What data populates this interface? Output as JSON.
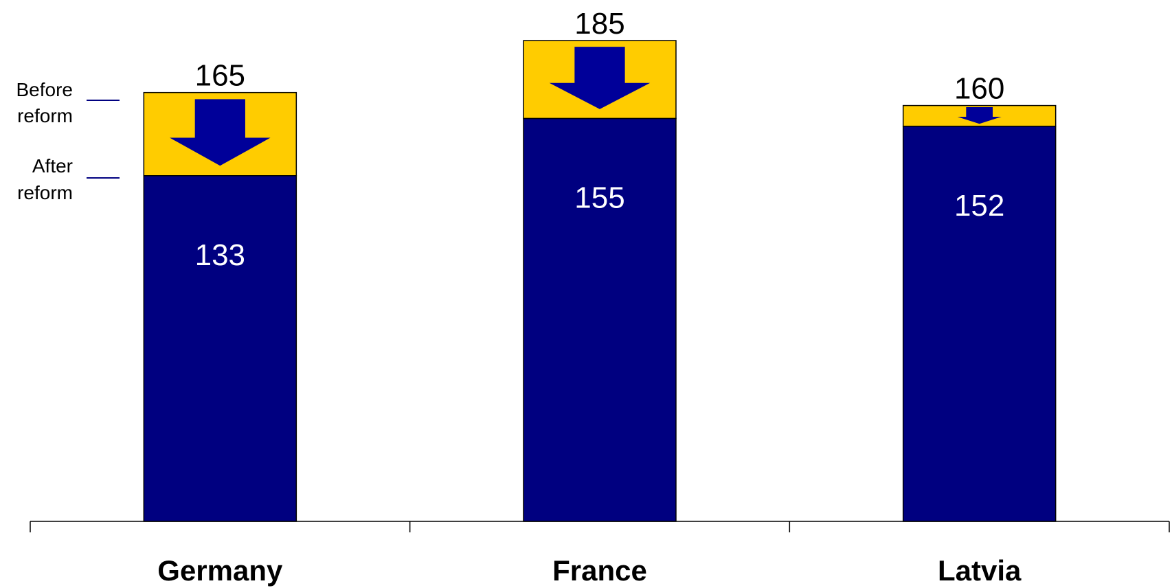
{
  "chart_data": {
    "type": "bar",
    "categories": [
      "Germany",
      "France",
      "Latvia"
    ],
    "before": [
      165,
      185,
      160
    ],
    "after": [
      133,
      155,
      152
    ],
    "ylim": [
      0,
      185
    ],
    "grid": false,
    "legend": {
      "before_lines": [
        "Before",
        "reform"
      ],
      "after_lines": [
        "After",
        "reform"
      ]
    }
  },
  "colors": {
    "after_bar": "#000080",
    "reduction": "#FFCC00",
    "arrow": "#000099",
    "after_label": "#FFFFFF",
    "before_label": "#000000",
    "axis": "#000000"
  },
  "icons": {
    "reduction_arrow": "down-arrow-icon"
  }
}
